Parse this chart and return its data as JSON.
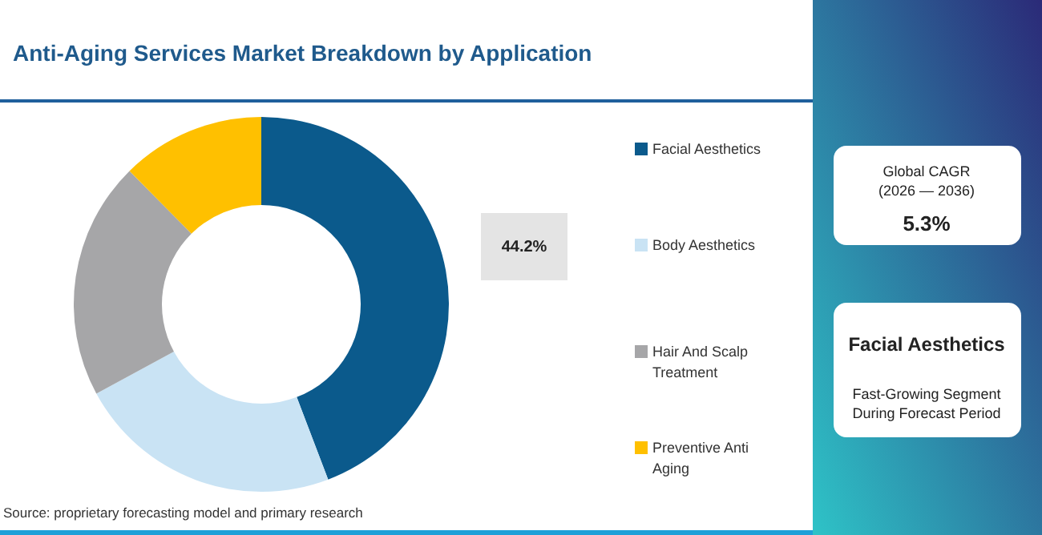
{
  "chart_data": {
    "type": "donut",
    "title": "Anti-Aging Services Market Breakdown by Application",
    "categories": [
      "Facial Aesthetics",
      "Body Aesthetics",
      "Hair And Scalp Treatment",
      "Preventive Anti Aging"
    ],
    "values": [
      44.2,
      22.9,
      20.5,
      12.4
    ],
    "colors": [
      "#0b5a8c",
      "#c9e3f4",
      "#a6a6a8",
      "#ffc000"
    ],
    "value_labels": [
      "44.2%",
      null,
      null,
      null
    ],
    "legend": "right",
    "annotations": [
      "Global CAGR",
      "(2026 — 2036)",
      "5.3%",
      "Facial Aesthetics",
      "Fast-Growing Segment",
      "During Forecast Period",
      "Source: proprietary forecasting model and primary research"
    ]
  }
}
